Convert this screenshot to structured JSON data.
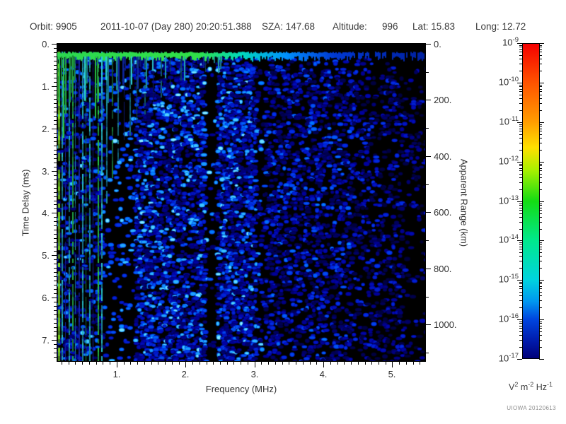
{
  "header": {
    "segments": [
      "Orbit: 9905",
      "2011-10-07 (Day 280) 20:20:51.388",
      "SZA: 147.68",
      "Altitude:",
      "996",
      "Lat: 15.83",
      "Long: 12.72"
    ]
  },
  "credit": "UIOWA 20120613",
  "chart_data": {
    "type": "heatmap",
    "xlabel": "Frequency (MHz)",
    "ylabel_left": "Time Delay (ms)",
    "ylabel_right": "Apparent Range (km)",
    "x_range_mhz": [
      0.128,
      5.488
    ],
    "x_ticks": {
      "values": [
        1,
        2,
        3,
        4,
        5
      ],
      "labels": [
        "1.",
        "2.",
        "3.",
        "4.",
        "5."
      ],
      "minor_step": 0.1
    },
    "y_left_range_ms": [
      0,
      7.5
    ],
    "y_left_ticks": {
      "values": [
        0,
        1,
        2,
        3,
        4,
        5,
        6,
        7
      ],
      "labels": [
        "0.",
        "1.",
        "2.",
        "3.",
        "4.",
        "5.",
        "6.",
        "7."
      ],
      "minor_step": 0.1
    },
    "y_right_range_km": [
      0,
      1130
    ],
    "y_right_ticks": {
      "values": [
        0,
        200,
        400,
        600,
        800,
        1000
      ],
      "labels": [
        "0.",
        "200.",
        "400.",
        "600.",
        "800.",
        "1000."
      ],
      "minor_step": 100
    },
    "colorbar": {
      "scale": "log",
      "exponents": [
        -9,
        -10,
        -11,
        -12,
        -13,
        -14,
        -15,
        -16,
        -17
      ],
      "units_parts": [
        {
          "base": "V",
          "exp": "2"
        },
        {
          "base": "m",
          "exp": "-2"
        },
        {
          "base": "Hz",
          "exp": "-1"
        }
      ],
      "gradient_stops": [
        {
          "pos": 0.0,
          "color": "#f40000"
        },
        {
          "pos": 0.125,
          "color": "#ff5400"
        },
        {
          "pos": 0.25,
          "color": "#ff9e00"
        },
        {
          "pos": 0.33,
          "color": "#ffe000"
        },
        {
          "pos": 0.4,
          "color": "#aaf000"
        },
        {
          "pos": 0.5,
          "color": "#14dc14"
        },
        {
          "pos": 0.625,
          "color": "#00e88c"
        },
        {
          "pos": 0.75,
          "color": "#00d4de"
        },
        {
          "pos": 0.82,
          "color": "#0096f0"
        },
        {
          "pos": 0.875,
          "color": "#0046e0"
        },
        {
          "pos": 0.95,
          "color": "#0018a8"
        },
        {
          "pos": 1.0,
          "color": "#000078"
        }
      ]
    },
    "features": {
      "seed": 20120613,
      "top_blackout_ms": 0.18,
      "surface_band": {
        "t0_ms": 0.18,
        "t1_ms": 0.35,
        "drip_max_mhz": 2.6,
        "color_stops": [
          {
            "pos": 0.0,
            "color": "#2cd850"
          },
          {
            "pos": 0.38,
            "color": "#30e048"
          },
          {
            "pos": 0.5,
            "color": "#00d8c0"
          },
          {
            "pos": 0.62,
            "color": "#0090ff"
          },
          {
            "pos": 0.75,
            "color": "#0038d0"
          },
          {
            "pos": 1.0,
            "color": "#0020a0"
          }
        ],
        "gap_start_frac": 0.8,
        "gap_prob": 0.4
      },
      "palette_stops": [
        {
          "pos": 0.0,
          "color": "#000000"
        },
        {
          "pos": 0.3,
          "color": "#0000a0"
        },
        {
          "pos": 0.55,
          "color": "#0030e8"
        },
        {
          "pos": 0.75,
          "color": "#0080ff"
        },
        {
          "pos": 0.9,
          "color": "#40c8ff"
        },
        {
          "pos": 1.0,
          "color": "#90f0ff"
        }
      ],
      "stripe_colors": {
        "chartreuse": "#84e41c",
        "green": "#2cd84c",
        "cyan": "#2cd8e0",
        "blue": "#2038e8"
      },
      "plasma_harmonic_stripes": [
        {
          "f": 0.145,
          "w": 3,
          "c": "chartreuse",
          "b": 1.0,
          "len": 1.0
        },
        {
          "f": 0.2,
          "w": 2,
          "c": "cyan",
          "b": 0.9,
          "len": 1.0
        },
        {
          "f": 0.25,
          "w": 1,
          "c": "blue",
          "b": 0.8,
          "len": 1.0
        },
        {
          "f": 0.3,
          "w": 2,
          "c": "cyan",
          "b": 0.85,
          "len": 1.0
        },
        {
          "f": 0.35,
          "w": 2,
          "c": "green",
          "b": 0.8,
          "len": 1.0
        },
        {
          "f": 0.4,
          "w": 1,
          "c": "cyan",
          "b": 0.7,
          "len": 1.0
        },
        {
          "f": 0.45,
          "w": 2,
          "c": "blue",
          "b": 0.75,
          "len": 1.0
        },
        {
          "f": 0.5,
          "w": 2,
          "c": "cyan",
          "b": 0.9,
          "len": 1.0
        },
        {
          "f": 0.55,
          "w": 1,
          "c": "green",
          "b": 0.7,
          "len": 1.0
        },
        {
          "f": 0.6,
          "w": 2,
          "c": "cyan",
          "b": 0.85,
          "len": 1.0
        },
        {
          "f": 0.655,
          "w": 1,
          "c": "blue",
          "b": 0.7,
          "len": 1.0
        },
        {
          "f": 0.725,
          "w": 2,
          "c": "green",
          "b": 1.0,
          "len": 1.0
        },
        {
          "f": 0.78,
          "w": 2,
          "c": "cyan",
          "b": 0.95,
          "len": 1.0
        },
        {
          "f": 0.85,
          "w": 2,
          "c": "cyan",
          "b": 0.7,
          "len": 0.5
        },
        {
          "f": 0.93,
          "w": 2,
          "c": "green",
          "b": 0.6,
          "len": 0.42
        },
        {
          "f": 1.01,
          "w": 2,
          "c": "cyan",
          "b": 0.6,
          "len": 0.36
        },
        {
          "f": 1.1,
          "w": 1,
          "c": "blue",
          "b": 0.5,
          "len": 0.3
        },
        {
          "f": 1.19,
          "w": 2,
          "c": "cyan",
          "b": 0.55,
          "len": 0.28
        },
        {
          "f": 1.29,
          "w": 1,
          "c": "green",
          "b": 0.5,
          "len": 0.24
        },
        {
          "f": 1.4,
          "w": 2,
          "c": "cyan",
          "b": 0.5,
          "len": 0.22
        },
        {
          "f": 1.52,
          "w": 1,
          "c": "blue",
          "b": 0.45,
          "len": 0.18
        },
        {
          "f": 1.64,
          "w": 2,
          "c": "cyan",
          "b": 0.45,
          "len": 0.16
        },
        {
          "f": 1.77,
          "w": 1,
          "c": "green",
          "b": 0.4,
          "len": 0.13
        },
        {
          "f": 1.93,
          "w": 2,
          "c": "cyan",
          "b": 0.4,
          "len": 0.11
        },
        {
          "f": 2.1,
          "w": 1,
          "c": "blue",
          "b": 0.35,
          "len": 0.09
        },
        {
          "f": 2.28,
          "w": 1,
          "c": "cyan",
          "b": 0.35,
          "len": 0.08
        },
        {
          "f": 2.46,
          "w": 1,
          "c": "green",
          "b": 0.3,
          "len": 0.07
        }
      ],
      "speckle_regions": [
        {
          "f0": 0.128,
          "f1": 0.82,
          "p": 0.3,
          "vmin": 0.2,
          "vmax": 0.95
        },
        {
          "f0": 0.82,
          "f1": 1.28,
          "p": 0.12,
          "vmin": 0.45,
          "vmax": 1.0
        },
        {
          "f0": 1.28,
          "f1": 3.1,
          "p": 0.55,
          "vmin": 0.2,
          "vmax": 1.0
        },
        {
          "f0": 3.1,
          "f1": 4.4,
          "p": 0.38,
          "vmin": 0.15,
          "vmax": 0.75
        },
        {
          "f0": 4.4,
          "f1": 5.15,
          "p": 0.28,
          "vmin": 0.12,
          "vmax": 0.6
        },
        {
          "f0": 5.15,
          "f1": 5.49,
          "p": 0.15,
          "vmin": 0.1,
          "vmax": 0.5
        }
      ],
      "speckle_gaps": [
        {
          "f0": 2.28,
          "f1": 2.44,
          "mult": 0.12
        },
        {
          "f0": 3.05,
          "f1": 3.17,
          "mult": 0.3
        }
      ]
    }
  }
}
